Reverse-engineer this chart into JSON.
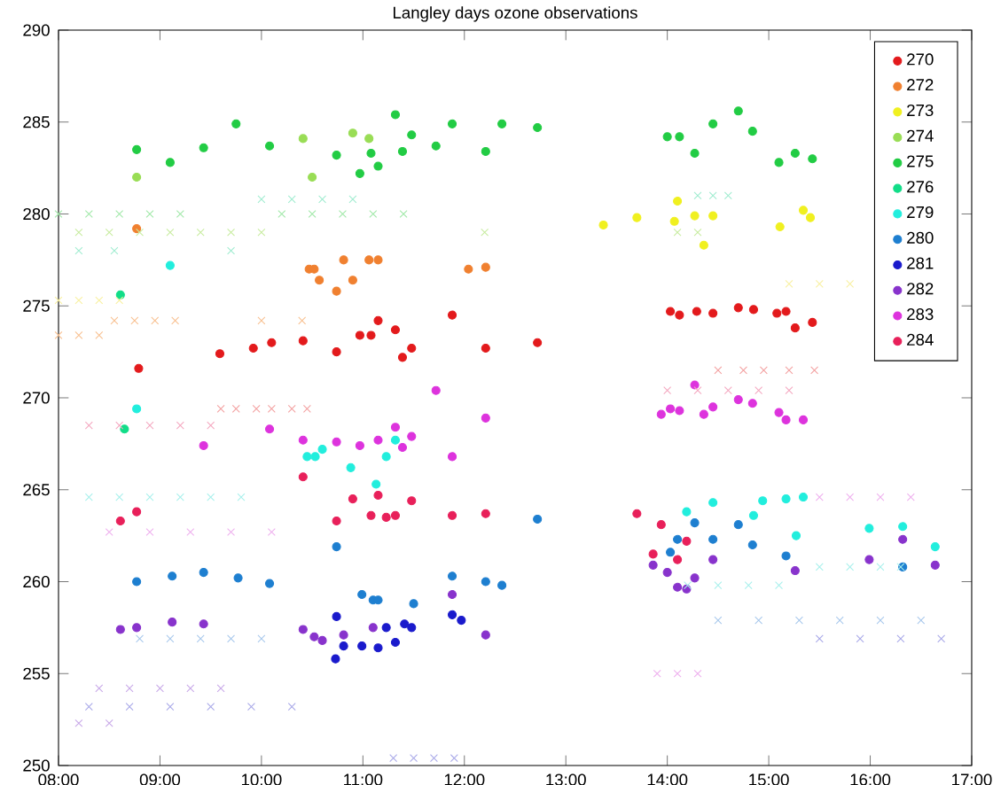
{
  "chart_data": {
    "type": "scatter",
    "title": "Langley days ozone observations",
    "xlim": [
      8,
      17
    ],
    "ylim": [
      250,
      290
    ],
    "xticks": [
      {
        "value": 8,
        "label": "08:00"
      },
      {
        "value": 9,
        "label": "09:00"
      },
      {
        "value": 10,
        "label": "10:00"
      },
      {
        "value": 11,
        "label": "11:00"
      },
      {
        "value": 12,
        "label": "12:00"
      },
      {
        "value": 13,
        "label": "13:00"
      },
      {
        "value": 14,
        "label": "14:00"
      },
      {
        "value": 15,
        "label": "15:00"
      },
      {
        "value": 16,
        "label": "16:00"
      },
      {
        "value": 17,
        "label": "17:00"
      }
    ],
    "yticks": [
      250,
      255,
      260,
      265,
      270,
      275,
      280,
      285,
      290
    ],
    "legend": "top right",
    "series": [
      {
        "name": "270",
        "color": "#e31a1c",
        "marker": "circle",
        "x": [
          8.79,
          9.59,
          9.92,
          10.1,
          10.41,
          10.74,
          10.97,
          11.08,
          11.15,
          11.32,
          11.39,
          11.48,
          11.88,
          12.21,
          12.72,
          14.03,
          14.12,
          14.29,
          14.45,
          14.7,
          14.85,
          15.08,
          15.17,
          15.26,
          15.43
        ],
        "values": [
          271.6,
          272.4,
          272.7,
          273.0,
          273.1,
          272.5,
          273.4,
          273.4,
          274.2,
          273.7,
          272.2,
          272.7,
          274.5,
          272.7,
          273.0,
          274.7,
          274.5,
          274.7,
          274.6,
          274.9,
          274.8,
          274.6,
          274.7,
          273.8,
          274.1
        ]
      },
      {
        "name": "272",
        "color": "#f08030",
        "marker": "circle",
        "x": [
          8.77,
          10.47,
          10.52,
          10.57,
          10.74,
          10.81,
          10.9,
          11.06,
          11.15,
          12.04,
          12.21
        ],
        "values": [
          279.2,
          277.0,
          277.0,
          276.4,
          275.8,
          277.5,
          276.4,
          277.5,
          277.5,
          277.0,
          277.1
        ]
      },
      {
        "name": "273",
        "color": "#f0f020",
        "marker": "circle",
        "x": [
          13.37,
          13.7,
          14.07,
          14.1,
          14.27,
          14.36,
          14.45,
          15.11,
          15.34,
          15.41
        ],
        "values": [
          279.4,
          279.8,
          279.6,
          280.7,
          279.9,
          278.3,
          279.9,
          279.3,
          280.2,
          279.8
        ]
      },
      {
        "name": "274",
        "color": "#99dd55",
        "marker": "circle",
        "x": [
          8.77,
          9.1,
          10.41,
          10.5,
          10.9,
          11.06
        ],
        "values": [
          282.0,
          null,
          284.1,
          282.0,
          284.4,
          284.1
        ]
      },
      {
        "name": "275",
        "color": "#22cc44",
        "marker": "circle",
        "x": [
          8.77,
          9.1,
          9.43,
          9.75,
          10.08,
          10.74,
          10.97,
          11.08,
          11.15,
          11.32,
          11.39,
          11.48,
          11.72,
          11.88,
          12.21,
          12.37,
          12.72,
          14.0,
          14.12,
          14.27,
          14.45,
          14.7,
          14.84,
          15.1,
          15.26,
          15.43
        ],
        "values": [
          283.5,
          282.8,
          283.6,
          284.9,
          283.7,
          283.2,
          282.2,
          283.3,
          282.6,
          285.4,
          283.4,
          284.3,
          283.7,
          284.9,
          283.4,
          284.9,
          284.7,
          284.2,
          284.2,
          283.3,
          284.9,
          285.6,
          284.5,
          282.8,
          283.3,
          283.0
        ]
      },
      {
        "name": "276",
        "color": "#11dd88",
        "marker": "circle",
        "x": [
          8.61,
          8.65
        ],
        "values": [
          275.6,
          268.3
        ]
      },
      {
        "name": "279",
        "color": "#22eedd",
        "marker": "circle",
        "x": [
          8.77,
          9.1,
          10.45,
          10.53,
          10.6,
          10.88,
          11.13,
          11.23,
          11.32,
          14.19,
          14.45,
          14.85,
          14.94,
          15.17,
          15.27,
          15.34,
          15.99,
          16.32,
          16.64
        ],
        "values": [
          269.4,
          277.2,
          266.8,
          266.8,
          267.2,
          266.2,
          265.3,
          266.8,
          267.7,
          263.8,
          264.3,
          263.6,
          264.4,
          264.5,
          262.5,
          264.6,
          262.9,
          263.0,
          261.9
        ]
      },
      {
        "name": "280",
        "color": "#1e7fd0",
        "marker": "circle",
        "x": [
          8.77,
          9.12,
          9.43,
          9.77,
          10.08,
          10.74,
          10.99,
          11.1,
          11.15,
          11.5,
          11.88,
          12.21,
          12.37,
          12.72,
          14.03,
          14.1,
          14.27,
          14.45,
          14.7,
          14.84,
          15.17,
          16.32
        ],
        "values": [
          260.0,
          260.3,
          260.5,
          260.2,
          259.9,
          261.9,
          259.3,
          259.0,
          259.0,
          258.8,
          260.3,
          260.0,
          259.8,
          263.4,
          261.6,
          262.3,
          263.2,
          262.3,
          263.1,
          262.0,
          261.4,
          260.8
        ]
      },
      {
        "name": "281",
        "color": "#1a1acc",
        "marker": "circle",
        "x": [
          10.73,
          10.74,
          10.81,
          10.99,
          11.15,
          11.23,
          11.32,
          11.41,
          11.48,
          11.88,
          11.97
        ],
        "values": [
          255.8,
          258.1,
          256.5,
          256.5,
          256.4,
          257.5,
          256.7,
          257.7,
          257.5,
          258.2,
          257.9
        ]
      },
      {
        "name": "282",
        "color": "#8833cc",
        "marker": "circle",
        "x": [
          8.61,
          8.77,
          9.12,
          9.43,
          10.41,
          10.52,
          10.6,
          10.81,
          11.1,
          11.88,
          12.21,
          13.86,
          14.0,
          14.1,
          14.19,
          14.27,
          14.45,
          15.26,
          15.99,
          16.32,
          16.64
        ],
        "values": [
          257.4,
          257.5,
          257.8,
          257.7,
          257.4,
          257.0,
          256.8,
          257.1,
          257.5,
          259.3,
          257.1,
          260.9,
          260.5,
          259.7,
          259.6,
          260.2,
          261.2,
          260.6,
          261.2,
          262.3,
          260.9
        ]
      },
      {
        "name": "283",
        "color": "#dd33dd",
        "marker": "circle",
        "x": [
          9.43,
          10.08,
          10.41,
          10.74,
          10.97,
          11.15,
          11.32,
          11.39,
          11.48,
          11.72,
          11.88,
          12.21,
          13.94,
          14.03,
          14.12,
          14.27,
          14.36,
          14.45,
          14.7,
          14.84,
          15.1,
          15.17,
          15.34
        ],
        "values": [
          267.4,
          268.3,
          267.7,
          267.6,
          267.4,
          267.7,
          268.4,
          267.3,
          267.9,
          270.4,
          266.8,
          268.9,
          269.1,
          269.4,
          269.3,
          270.7,
          269.1,
          269.5,
          269.9,
          269.7,
          269.2,
          268.8,
          268.8
        ]
      },
      {
        "name": "284",
        "color": "#e8205a",
        "marker": "circle",
        "x": [
          8.61,
          8.77,
          10.41,
          10.74,
          10.9,
          11.08,
          11.15,
          11.23,
          11.32,
          11.48,
          11.88,
          12.21,
          13.7,
          13.86,
          13.94,
          14.1,
          14.19
        ],
        "values": [
          263.3,
          263.8,
          265.7,
          263.3,
          264.5,
          263.6,
          264.7,
          263.5,
          263.6,
          264.4,
          263.6,
          263.7,
          263.7,
          261.5,
          263.1,
          261.2,
          262.2
        ]
      },
      {
        "color": "#f3a0a0",
        "marker": "cross",
        "x": [
          9.6,
          9.75,
          9.95,
          10.1,
          10.3,
          10.45,
          14.5,
          14.75,
          14.95,
          15.2,
          15.45
        ],
        "values": [
          269.4,
          269.4,
          269.4,
          269.4,
          269.4,
          269.4,
          271.5,
          271.5,
          271.5,
          271.5,
          271.5
        ]
      },
      {
        "color": "#f8c090",
        "marker": "cross",
        "x": [
          8.0,
          8.2,
          8.4,
          8.55,
          8.75,
          8.95,
          9.15,
          10.0,
          10.4
        ],
        "values": [
          273.4,
          273.4,
          273.4,
          274.2,
          274.2,
          274.2,
          274.2,
          274.2,
          274.2
        ]
      },
      {
        "color": "#f8f0a0",
        "marker": "cross",
        "x": [
          8.0,
          8.2,
          8.4,
          8.6,
          15.2,
          15.5,
          15.8
        ],
        "values": [
          275.3,
          275.3,
          275.3,
          275.3,
          276.2,
          276.2,
          276.2
        ]
      },
      {
        "color": "#c8eca0",
        "marker": "cross",
        "x": [
          8.2,
          8.5,
          8.8,
          9.1,
          9.4,
          9.7,
          10.0,
          12.2,
          14.1,
          14.3
        ],
        "values": [
          279.0,
          279.0,
          279.0,
          279.0,
          279.0,
          279.0,
          279.0,
          279.0,
          279.0,
          279.0
        ]
      },
      {
        "color": "#a0e8a8",
        "marker": "cross",
        "x": [
          8.0,
          8.3,
          8.6,
          8.9,
          9.2,
          10.2,
          10.5,
          10.8,
          11.1,
          11.4
        ],
        "values": [
          280.0,
          280.0,
          280.0,
          280.0,
          280.0,
          280.0,
          280.0,
          280.0,
          280.0,
          280.0
        ]
      },
      {
        "color": "#a0ecd0",
        "marker": "cross",
        "x": [
          10.0,
          10.3,
          10.6,
          10.9,
          14.3,
          14.45,
          14.6,
          8.2,
          8.55,
          9.7
        ],
        "values": [
          280.8,
          280.8,
          280.8,
          280.8,
          281.0,
          281.0,
          281.0,
          278.0,
          278.0,
          278.0
        ]
      },
      {
        "color": "#a8f0ec",
        "marker": "cross",
        "x": [
          8.3,
          8.6,
          8.9,
          9.2,
          9.5,
          9.8,
          14.2,
          14.5,
          14.8,
          15.1,
          15.5,
          15.8,
          16.1,
          16.3
        ],
        "values": [
          264.6,
          264.6,
          264.6,
          264.6,
          264.6,
          264.6,
          259.8,
          259.8,
          259.8,
          259.8,
          260.8,
          260.8,
          260.8,
          260.8
        ]
      },
      {
        "color": "#a8c8ec",
        "marker": "cross",
        "x": [
          8.8,
          9.1,
          9.4,
          9.7,
          10.0,
          14.5,
          14.9,
          15.3,
          15.7,
          16.1,
          16.5
        ],
        "values": [
          256.9,
          256.9,
          256.9,
          256.9,
          256.9,
          257.9,
          257.9,
          257.9,
          257.9,
          257.9,
          257.9
        ]
      },
      {
        "color": "#a8a8e8",
        "marker": "cross",
        "x": [
          8.3,
          8.7,
          9.1,
          9.5,
          9.9,
          10.3,
          11.3,
          11.5,
          11.7,
          11.9,
          15.5,
          15.9,
          16.3,
          16.7
        ],
        "values": [
          253.2,
          253.2,
          253.2,
          253.2,
          253.2,
          253.2,
          250.4,
          250.4,
          250.4,
          250.4,
          256.9,
          256.9,
          256.9,
          256.9
        ]
      },
      {
        "color": "#c8a8e8",
        "marker": "cross",
        "x": [
          8.4,
          8.7,
          9.0,
          9.3,
          9.6,
          8.2,
          8.5
        ],
        "values": [
          254.2,
          254.2,
          254.2,
          254.2,
          254.2,
          252.3,
          252.3
        ]
      },
      {
        "color": "#eeb0ee",
        "marker": "cross",
        "x": [
          8.5,
          8.9,
          9.3,
          9.7,
          10.1,
          15.5,
          15.8,
          16.1,
          16.4,
          13.9,
          14.1,
          14.3
        ],
        "values": [
          262.7,
          262.7,
          262.7,
          262.7,
          262.7,
          264.6,
          264.6,
          264.6,
          264.6,
          255.0,
          255.0,
          255.0
        ]
      },
      {
        "color": "#f4a8c0",
        "marker": "cross",
        "x": [
          8.3,
          8.6,
          8.9,
          9.2,
          9.5,
          14.0,
          14.3,
          14.6,
          14.9,
          15.2
        ],
        "values": [
          268.5,
          268.5,
          268.5,
          268.5,
          268.5,
          270.4,
          270.4,
          270.4,
          270.4,
          270.4
        ]
      }
    ]
  }
}
